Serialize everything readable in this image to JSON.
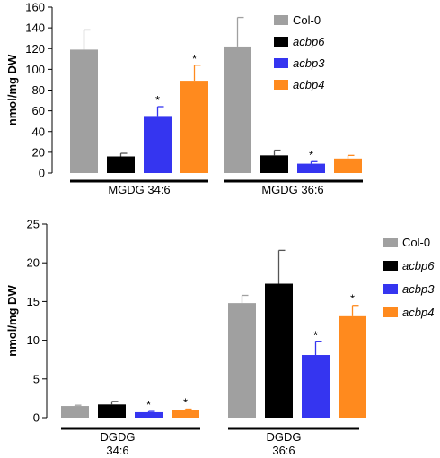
{
  "chart_data": [
    {
      "type": "bar",
      "ylabel": "nmol/mg DW",
      "ylim": [
        0,
        160
      ],
      "yticks": [
        0,
        20,
        40,
        60,
        80,
        100,
        120,
        140,
        160
      ],
      "categories": [
        "MGDG 34:6",
        "MGDG 36:6"
      ],
      "legend_position": "top-right",
      "series": [
        {
          "name": "Col-0",
          "color": "#a0a0a0",
          "values": [
            119,
            122
          ],
          "errors": [
            19,
            28
          ],
          "significant": [
            false,
            false
          ]
        },
        {
          "name": "acbp6",
          "color": "#000000",
          "values": [
            16,
            17
          ],
          "errors": [
            3,
            5
          ],
          "significant": [
            false,
            false
          ]
        },
        {
          "name": "acbp3",
          "color": "#3535f0",
          "values": [
            55,
            9
          ],
          "errors": [
            9,
            2
          ],
          "significant": [
            true,
            true
          ]
        },
        {
          "name": "acbp4",
          "color": "#ff8a1e",
          "values": [
            89,
            14
          ],
          "errors": [
            15,
            3
          ],
          "significant": [
            true,
            false
          ]
        }
      ],
      "significance_marker": "*"
    },
    {
      "type": "bar",
      "ylabel": "nmol/mg DW",
      "ylim": [
        0,
        25
      ],
      "yticks": [
        0,
        5,
        10,
        15,
        20,
        25
      ],
      "categories": [
        "DGDG\n34:6",
        "DGDG\n36:6"
      ],
      "legend_position": "right",
      "series": [
        {
          "name": "Col-0",
          "color": "#a0a0a0",
          "values": [
            1.5,
            14.8
          ],
          "errors": [
            0.1,
            1.0
          ],
          "significant": [
            false,
            false
          ]
        },
        {
          "name": "acbp6",
          "color": "#000000",
          "values": [
            1.7,
            17.3
          ],
          "errors": [
            0.4,
            4.3
          ],
          "significant": [
            false,
            false
          ]
        },
        {
          "name": "acbp3",
          "color": "#3535f0",
          "values": [
            0.7,
            8.1
          ],
          "errors": [
            0.1,
            1.7
          ],
          "significant": [
            true,
            true
          ]
        },
        {
          "name": "acbp4",
          "color": "#ff8a1e",
          "values": [
            1.0,
            13.1
          ],
          "errors": [
            0.1,
            1.4
          ],
          "significant": [
            true,
            true
          ]
        }
      ],
      "significance_marker": "*"
    }
  ]
}
